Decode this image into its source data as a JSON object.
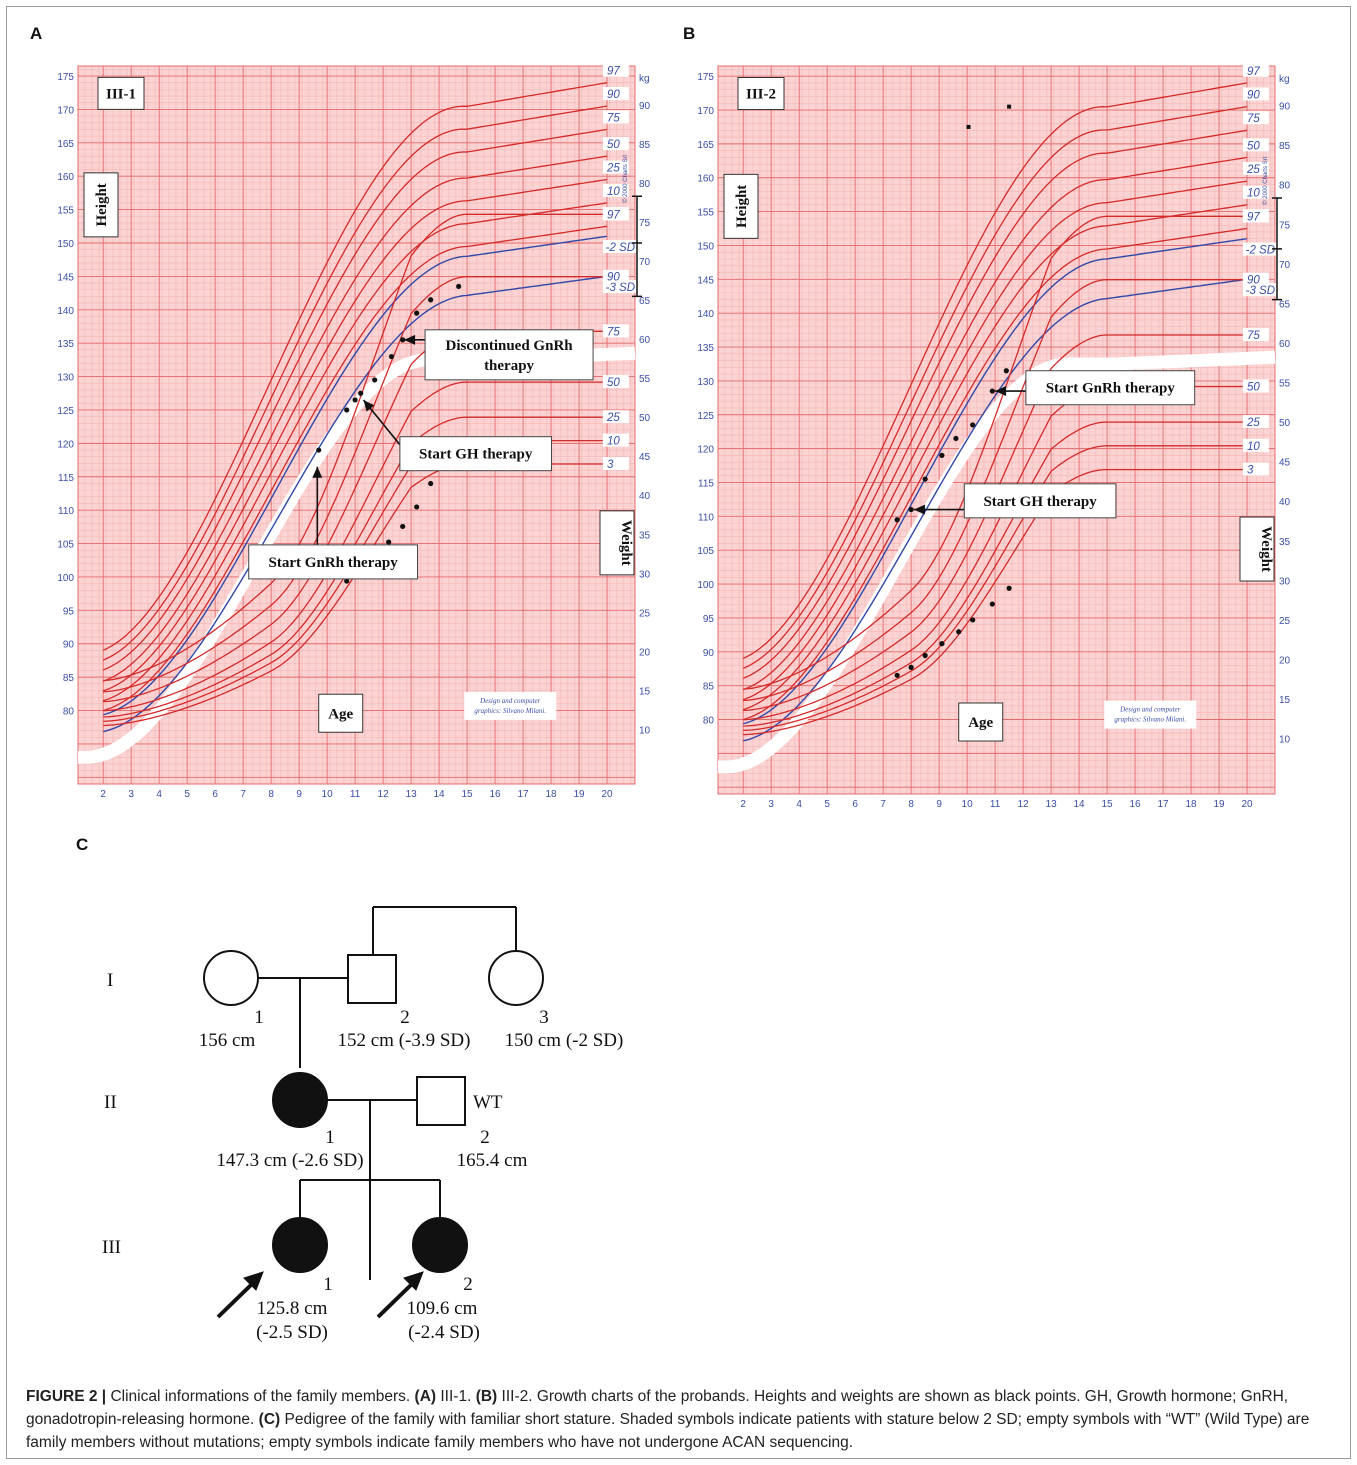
{
  "panel_labels": {
    "A": "A",
    "B": "B",
    "C": "C"
  },
  "chart_data": [
    {
      "type": "scatter",
      "id": "III-1",
      "title": "III-1",
      "xlabel": "Age",
      "ylabel_left": "Height",
      "ylabel_right": "Weight",
      "weight_unit": "kg",
      "credit": [
        "Design and computer",
        "graphics: Silvano Milani."
      ],
      "copyright": "© 2000 Charts Srl",
      "x_range": [
        1.1,
        21.0
      ],
      "height_range": [
        69.0,
        176.5
      ],
      "weight_range": [
        3.0,
        95.0
      ],
      "x_ticks": [
        2,
        3,
        4,
        5,
        6,
        7,
        8,
        9,
        10,
        11,
        12,
        13,
        14,
        15,
        16,
        17,
        18,
        19,
        20
      ],
      "height_ticks": [
        80,
        85,
        90,
        95,
        100,
        105,
        110,
        115,
        120,
        125,
        130,
        135,
        140,
        145,
        150,
        155,
        160,
        165,
        170,
        175
      ],
      "weight_ticks": [
        10,
        15,
        20,
        25,
        30,
        35,
        40,
        45,
        50,
        55,
        60,
        65,
        70,
        75,
        80,
        85,
        90
      ],
      "height_percentiles": [
        {
          "label": "97",
          "adult": 174.0
        },
        {
          "label": "90",
          "adult": 170.5
        },
        {
          "label": "75",
          "adult": 167.0
        },
        {
          "label": "50",
          "adult": 163.0
        },
        {
          "label": "25",
          "adult": 159.5
        },
        {
          "label": "10",
          "adult": 156.0
        },
        {
          "label": "3",
          "adult": 152.5
        }
      ],
      "height_sd_lines": [
        {
          "label": "-2 SD",
          "adult": 151.0
        },
        {
          "label": "-3 SD",
          "adult": 145.0
        }
      ],
      "weight_percentiles": [
        {
          "label": "97",
          "adult": 76.0
        },
        {
          "label": "90",
          "adult": 68.0
        },
        {
          "label": "75",
          "adult": 61.0
        },
        {
          "label": "50",
          "adult": 54.5
        },
        {
          "label": "25",
          "adult": 50.0
        },
        {
          "label": "10",
          "adult": 47.0
        },
        {
          "label": "3",
          "adult": 44.0
        }
      ],
      "height_points": [
        {
          "x": 9.7,
          "y": 119.0
        },
        {
          "x": 10.7,
          "y": 125.0
        },
        {
          "x": 11.0,
          "y": 126.5
        },
        {
          "x": 11.2,
          "y": 127.5
        },
        {
          "x": 11.7,
          "y": 129.5
        },
        {
          "x": 12.3,
          "y": 133.0
        },
        {
          "x": 12.7,
          "y": 135.5
        },
        {
          "x": 13.2,
          "y": 139.5
        },
        {
          "x": 13.7,
          "y": 141.5
        },
        {
          "x": 14.7,
          "y": 143.5
        }
      ],
      "weight_points": [
        {
          "x": 10.7,
          "y": 29.0
        },
        {
          "x": 11.2,
          "y": 30.0
        },
        {
          "x": 11.7,
          "y": 32.0
        },
        {
          "x": 12.2,
          "y": 34.0
        },
        {
          "x": 12.7,
          "y": 36.0
        },
        {
          "x": 13.2,
          "y": 38.5
        },
        {
          "x": 13.7,
          "y": 41.5
        },
        {
          "x": 14.7,
          "y": 45.5
        }
      ],
      "target_bar": {
        "top": 157.0,
        "mid": 150.0,
        "bottom": 142.0
      },
      "annotations": [
        {
          "lines": [
            "Discontinued GnRh",
            "therapy"
          ],
          "point_x": 12.75,
          "point_y": 135.5,
          "box_x": 13.5,
          "box_y": 137.0
        },
        {
          "lines": [
            "Start GH therapy"
          ],
          "point_x": 11.3,
          "point_y": 126.5,
          "box_x": 12.6,
          "box_y": 121.0
        },
        {
          "lines": [
            "Start GnRh therapy"
          ],
          "point_x": 9.65,
          "point_y": 116.5,
          "box_x": 7.2,
          "box_y": 104.8
        }
      ]
    },
    {
      "type": "scatter",
      "id": "III-2",
      "title": "III-2",
      "xlabel": "Age",
      "ylabel_left": "Height",
      "ylabel_right": "Weight",
      "weight_unit": "kg",
      "credit": [
        "Design and computer",
        "graphics: Silvano Milani."
      ],
      "copyright": "© 2000 Charts Srl",
      "x_range": [
        1.1,
        21.0
      ],
      "height_range": [
        69.0,
        176.5
      ],
      "weight_range": [
        3.0,
        95.0
      ],
      "x_ticks": [
        2,
        3,
        4,
        5,
        6,
        7,
        8,
        9,
        10,
        11,
        12,
        13,
        14,
        15,
        16,
        17,
        18,
        19,
        20
      ],
      "height_ticks": [
        80,
        85,
        90,
        95,
        100,
        105,
        110,
        115,
        120,
        125,
        130,
        135,
        140,
        145,
        150,
        155,
        160,
        165,
        170,
        175
      ],
      "weight_ticks": [
        10,
        15,
        20,
        25,
        30,
        35,
        40,
        45,
        50,
        55,
        60,
        65,
        70,
        75,
        80,
        85,
        90
      ],
      "height_percentiles": [
        {
          "label": "97",
          "adult": 174.0
        },
        {
          "label": "90",
          "adult": 170.5
        },
        {
          "label": "75",
          "adult": 167.0
        },
        {
          "label": "50",
          "adult": 163.0
        },
        {
          "label": "25",
          "adult": 159.5
        },
        {
          "label": "10",
          "adult": 156.0
        },
        {
          "label": "3",
          "adult": 152.5
        }
      ],
      "height_sd_lines": [
        {
          "label": "-2 SD",
          "adult": 151.0
        },
        {
          "label": "-3 SD",
          "adult": 145.0
        }
      ],
      "weight_percentiles": [
        {
          "label": "97",
          "adult": 76.0
        },
        {
          "label": "90",
          "adult": 68.0
        },
        {
          "label": "75",
          "adult": 61.0
        },
        {
          "label": "50",
          "adult": 54.5
        },
        {
          "label": "25",
          "adult": 50.0
        },
        {
          "label": "10",
          "adult": 47.0
        },
        {
          "label": "3",
          "adult": 44.0
        }
      ],
      "height_points": [
        {
          "x": 7.5,
          "y": 109.5
        },
        {
          "x": 8.0,
          "y": 111.0
        },
        {
          "x": 8.5,
          "y": 115.5
        },
        {
          "x": 9.1,
          "y": 119.0
        },
        {
          "x": 9.6,
          "y": 121.5
        },
        {
          "x": 10.2,
          "y": 123.5
        },
        {
          "x": 10.9,
          "y": 128.5
        },
        {
          "x": 11.4,
          "y": 131.5
        }
      ],
      "weight_points": [
        {
          "x": 7.5,
          "y": 18.0
        },
        {
          "x": 8.0,
          "y": 19.0
        },
        {
          "x": 8.5,
          "y": 20.5
        },
        {
          "x": 9.1,
          "y": 22.0
        },
        {
          "x": 9.7,
          "y": 23.5
        },
        {
          "x": 10.2,
          "y": 25.0
        },
        {
          "x": 10.9,
          "y": 27.0
        },
        {
          "x": 11.5,
          "y": 29.0
        }
      ],
      "stray_points": [
        {
          "x": 10.05,
          "y": 167.5
        },
        {
          "x": 11.5,
          "y": 170.5
        }
      ],
      "target_bar": {
        "top": 157.0,
        "mid": 149.5,
        "bottom": 142.0
      },
      "annotations": [
        {
          "lines": [
            "Start GnRh therapy"
          ],
          "point_x": 11.0,
          "point_y": 128.5,
          "box_x": 12.1,
          "box_y": 131.5
        },
        {
          "lines": [
            "Start GH therapy"
          ],
          "point_x": 8.1,
          "point_y": 111.0,
          "box_x": 9.9,
          "box_y": 114.8
        }
      ]
    }
  ],
  "pedigree": {
    "generations": [
      "I",
      "II",
      "III"
    ],
    "members": {
      "I1": {
        "number": "1",
        "height": "156 cm"
      },
      "I2": {
        "number": "2",
        "height": "152 cm (-3.9 SD)"
      },
      "I3": {
        "number": "3",
        "height": "150 cm (-2 SD)"
      },
      "II1": {
        "number": "1",
        "height": "147.3 cm (-2.6 SD)"
      },
      "II2": {
        "number": "2",
        "height": "165.4 cm",
        "tag": "WT"
      },
      "III1": {
        "number": "1",
        "height": "125.8 cm",
        "sd": "(-2.5 SD)"
      },
      "III2": {
        "number": "2",
        "height": "109.6 cm",
        "sd": "(-2.4  SD)"
      }
    }
  },
  "caption": {
    "prefix": "FIGURE 2 |",
    "t1": " Clinical informations of the family members. ",
    "a": "(A)",
    "t2": " III-1. ",
    "b": "(B)",
    "t3": " III-2. Growth charts of the probands. Heights and weights are shown as black points. GH, Growth hormone; GnRH, gonadotropin-releasing hormone. ",
    "c": "(C)",
    "t4": " Pedigree of the family with familiar short stature. Shaded symbols indicate patients with stature below 2 SD; empty symbols with “WT” (Wild Type) are family members without mutations; empty symbols indicate family members who have not undergone ACAN sequencing."
  },
  "colors": {
    "grid_minor": "#f4b6b6",
    "grid_major": "#e46a6a",
    "chart_bg": "#fbd3d3",
    "percentile_line": "#d42a2a",
    "sd_line": "#3048a8",
    "label_blue": "#3a4ea8",
    "point": "#111111"
  }
}
